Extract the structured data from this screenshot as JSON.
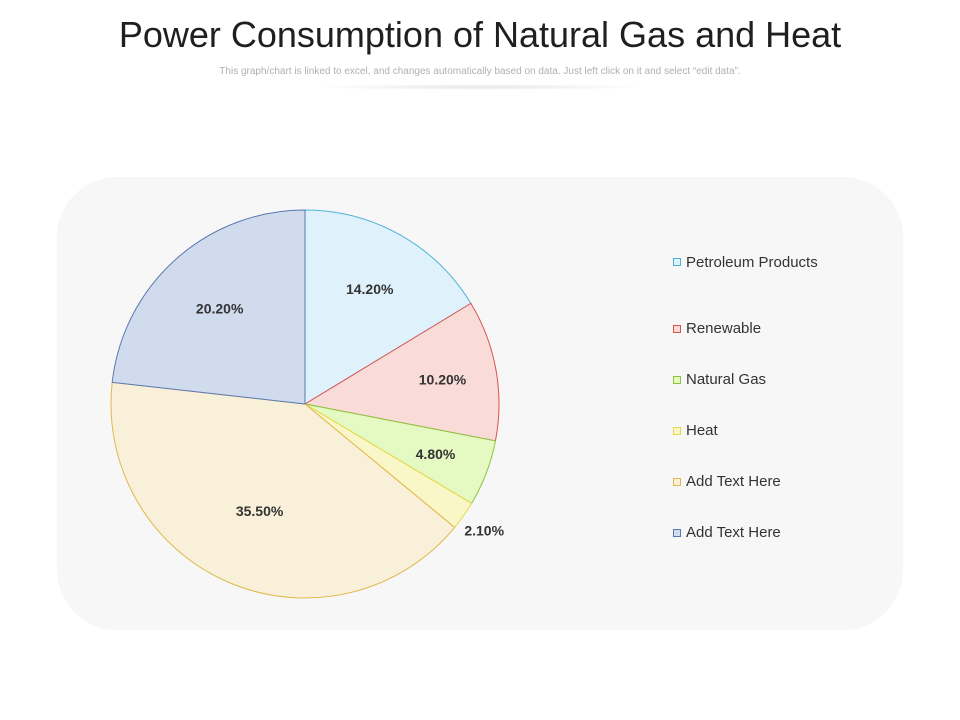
{
  "header": {
    "title": "Power Consumption of Natural Gas and Heat",
    "subtitle": "This graph/chart is linked to excel, and changes automatically based on data. Just left click on it and select “edit data”."
  },
  "chart_data": {
    "type": "pie",
    "title": "Power Consumption of Natural Gas and Heat",
    "legend_position": "right",
    "slices": [
      {
        "name": "Petroleum Products",
        "value": 14.2,
        "label": "14.20%",
        "fill": "#dff2fb",
        "stroke": "#4fb3d9"
      },
      {
        "name": "Renewable",
        "value": 10.2,
        "label": "10.20%",
        "fill": "#f9dcd8",
        "stroke": "#d9534f"
      },
      {
        "name": "Natural Gas",
        "value": 4.8,
        "label": "4.80%",
        "fill": "#e5f9c2",
        "stroke": "#8cc63f"
      },
      {
        "name": "Heat",
        "value": 2.1,
        "label": "2.10%",
        "fill": "#f9f6c8",
        "stroke": "#e8d84a"
      },
      {
        "name": "Add Text Here",
        "value": 35.5,
        "label": "35.50%",
        "fill": "#f8f0d9",
        "stroke": "#e0b84a"
      },
      {
        "name": "Add Text Here",
        "value": 20.2,
        "label": "20.20%",
        "fill": "#d0dbee",
        "stroke": "#5a78b0"
      }
    ]
  }
}
